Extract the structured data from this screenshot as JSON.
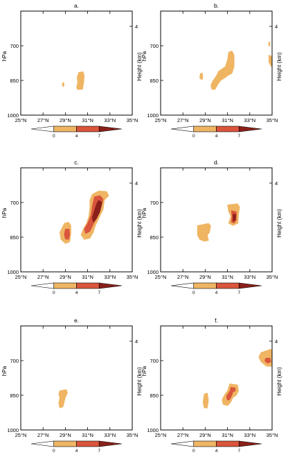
{
  "colors": {
    "level0": "#ffffff",
    "level1": "#efb563",
    "level2": "#d9553c",
    "level3": "#8b1f19"
  },
  "colorbar": {
    "labels": [
      "0",
      "4",
      "7"
    ]
  },
  "chart_data": [
    {
      "type": "contourf",
      "title": "a.",
      "xlabel": "",
      "ylabel": "hPa",
      "y2label": "Height (km)",
      "xlim": [
        25,
        35
      ],
      "ylim": [
        1000,
        550
      ],
      "xticks": [
        "25°N",
        "27°N",
        "29°N",
        "31°N",
        "33°N",
        "35°N"
      ],
      "yticks": [
        "700",
        "850",
        "1000"
      ],
      "y2ticks": [
        "4"
      ],
      "shapes": [
        {
          "level": 1,
          "points": [
            [
              30.2,
              815
            ],
            [
              30.6,
              812
            ],
            [
              30.7,
              830
            ],
            [
              30.65,
              860
            ],
            [
              30.55,
              888
            ],
            [
              30.1,
              890
            ],
            [
              30.0,
              880
            ],
            [
              30.1,
              860
            ],
            [
              30.05,
              835
            ]
          ]
        },
        {
          "level": 1,
          "points": [
            [
              28.75,
              860
            ],
            [
              28.85,
              858
            ],
            [
              28.9,
              872
            ],
            [
              28.8,
              878
            ],
            [
              28.72,
              870
            ]
          ]
        }
      ]
    },
    {
      "type": "contourf",
      "title": "b.",
      "xlabel": "",
      "ylabel": "hPa",
      "y2label": "Height (km)",
      "xlim": [
        25,
        35
      ],
      "ylim": [
        1000,
        550
      ],
      "xticks": [
        "25°N",
        "27°N",
        "29°N",
        "31°N",
        "33°N",
        "35°N"
      ],
      "yticks": [
        "700",
        "850",
        "1000"
      ],
      "y2ticks": [
        "4"
      ],
      "shapes": [
        {
          "level": 1,
          "points": [
            [
              31.1,
              728
            ],
            [
              31.4,
              722
            ],
            [
              31.6,
              740
            ],
            [
              31.6,
              790
            ],
            [
              31.4,
              820
            ],
            [
              31.0,
              830
            ],
            [
              30.8,
              838
            ],
            [
              30.4,
              850
            ],
            [
              30.1,
              870
            ],
            [
              29.9,
              888
            ],
            [
              29.6,
              890
            ],
            [
              29.5,
              870
            ],
            [
              29.7,
              850
            ],
            [
              30.0,
              830
            ],
            [
              30.2,
              810
            ],
            [
              30.5,
              800
            ],
            [
              30.8,
              790
            ],
            [
              31.0,
              760
            ]
          ]
        },
        {
          "level": 1,
          "points": [
            [
              28.55,
              820
            ],
            [
              28.75,
              818
            ],
            [
              28.8,
              838
            ],
            [
              28.7,
              848
            ],
            [
              28.5,
              840
            ]
          ]
        },
        {
          "level": 1,
          "points": [
            [
              34.7,
              740
            ],
            [
              34.95,
              745
            ],
            [
              35.0,
              780
            ],
            [
              34.9,
              790
            ],
            [
              34.7,
              770
            ]
          ]
        },
        {
          "level": 1,
          "points": [
            [
              34.7,
              685
            ],
            [
              34.8,
              682
            ],
            [
              34.82,
              700
            ],
            [
              34.7,
              702
            ]
          ]
        }
      ]
    },
    {
      "type": "contourf",
      "title": "c.",
      "xlabel": "",
      "ylabel": "hPa",
      "y2label": "Height (km)",
      "xlim": [
        25,
        35
      ],
      "ylim": [
        1000,
        550
      ],
      "xticks": [
        "25°N",
        "27°N",
        "29°N",
        "31°N",
        "33°N",
        "35°N"
      ],
      "yticks": [
        "700",
        "850",
        "1000"
      ],
      "y2ticks": [
        "4"
      ],
      "shapes": [
        {
          "level": 1,
          "points": [
            [
              31.4,
              665
            ],
            [
              32.0,
              650
            ],
            [
              32.7,
              652
            ],
            [
              32.9,
              670
            ],
            [
              32.5,
              690
            ],
            [
              32.4,
              730
            ],
            [
              32.0,
              770
            ],
            [
              31.7,
              800
            ],
            [
              31.5,
              830
            ],
            [
              31.2,
              855
            ],
            [
              30.7,
              860
            ],
            [
              30.4,
              840
            ],
            [
              30.6,
              815
            ],
            [
              30.9,
              790
            ],
            [
              31.1,
              760
            ],
            [
              31.2,
              720
            ],
            [
              31.2,
              690
            ]
          ]
        },
        {
          "level": 1,
          "points": [
            [
              28.9,
              790
            ],
            [
              29.3,
              785
            ],
            [
              29.5,
              800
            ],
            [
              29.5,
              835
            ],
            [
              29.4,
              870
            ],
            [
              29.0,
              878
            ],
            [
              28.6,
              860
            ],
            [
              28.5,
              830
            ],
            [
              28.7,
              810
            ]
          ]
        },
        {
          "level": 2,
          "points": [
            [
              31.6,
              675
            ],
            [
              32.1,
              670
            ],
            [
              32.4,
              685
            ],
            [
              32.2,
              720
            ],
            [
              31.9,
              760
            ],
            [
              31.5,
              795
            ],
            [
              31.2,
              825
            ],
            [
              30.8,
              835
            ],
            [
              30.7,
              815
            ],
            [
              31.0,
              790
            ],
            [
              31.3,
              755
            ],
            [
              31.4,
              720
            ]
          ]
        },
        {
          "level": 2,
          "points": [
            [
              29.0,
              815
            ],
            [
              29.35,
              815
            ],
            [
              29.4,
              840
            ],
            [
              29.3,
              860
            ],
            [
              29.0,
              858
            ],
            [
              28.9,
              838
            ]
          ]
        },
        {
          "level": 3,
          "points": [
            [
              32.0,
              690
            ],
            [
              32.3,
              700
            ],
            [
              32.1,
              740
            ],
            [
              31.8,
              770
            ],
            [
              31.5,
              785
            ],
            [
              31.4,
              765
            ],
            [
              31.6,
              735
            ],
            [
              31.8,
              705
            ]
          ]
        }
      ]
    },
    {
      "type": "contourf",
      "title": "d.",
      "xlabel": "",
      "ylabel": "hPa",
      "y2label": "Height (km)",
      "xlim": [
        25,
        35
      ],
      "ylim": [
        1000,
        550
      ],
      "xticks": [
        "25°N",
        "27°N",
        "29°N",
        "31°N",
        "33°N",
        "35°N"
      ],
      "yticks": [
        "700",
        "850",
        "1000"
      ],
      "y2ticks": [
        "4"
      ],
      "shapes": [
        {
          "level": 1,
          "points": [
            [
              31.0,
              710
            ],
            [
              31.9,
              705
            ],
            [
              32.1,
              720
            ],
            [
              32.0,
              750
            ],
            [
              31.95,
              790
            ],
            [
              31.5,
              800
            ],
            [
              31.1,
              790
            ],
            [
              31.3,
              760
            ],
            [
              31.1,
              740
            ]
          ]
        },
        {
          "level": 1,
          "points": [
            [
              28.3,
              800
            ],
            [
              29.3,
              790
            ],
            [
              29.5,
              800
            ],
            [
              29.4,
              830
            ],
            [
              29.2,
              840
            ],
            [
              29.3,
              865
            ],
            [
              28.9,
              868
            ],
            [
              28.5,
              860
            ],
            [
              28.3,
              840
            ]
          ]
        },
        {
          "level": 2,
          "points": [
            [
              31.35,
              735
            ],
            [
              31.8,
              740
            ],
            [
              31.8,
              775
            ],
            [
              31.6,
              790
            ],
            [
              31.35,
              785
            ],
            [
              31.4,
              760
            ]
          ]
        },
        {
          "level": 3,
          "points": [
            [
              31.5,
              750
            ],
            [
              31.75,
              752
            ],
            [
              31.7,
              778
            ],
            [
              31.5,
              780
            ]
          ]
        }
      ]
    },
    {
      "type": "contourf",
      "title": "e.",
      "xlabel": "",
      "ylabel": "hPa",
      "y2label": "Height (km)",
      "xlim": [
        25,
        35
      ],
      "ylim": [
        1000,
        550
      ],
      "xticks": [
        "25°N",
        "27°N",
        "29°N",
        "31°N",
        "33°N",
        "35°N"
      ],
      "yticks": [
        "700",
        "850",
        "1000"
      ],
      "y2ticks": [
        "4"
      ],
      "shapes": [
        {
          "level": 1,
          "points": [
            [
              28.5,
              830
            ],
            [
              29.1,
              825
            ],
            [
              29.2,
              840
            ],
            [
              29.0,
              860
            ],
            [
              28.9,
              880
            ],
            [
              28.8,
              900
            ],
            [
              28.5,
              905
            ],
            [
              28.4,
              885
            ],
            [
              28.5,
              860
            ],
            [
              28.4,
              845
            ]
          ]
        }
      ]
    },
    {
      "type": "contourf",
      "title": "f.",
      "xlabel": "",
      "ylabel": "hPa",
      "y2label": "Height (km)",
      "xlim": [
        25,
        35
      ],
      "ylim": [
        1000,
        550
      ],
      "xticks": [
        "25°N",
        "27°N",
        "29°N",
        "31°N",
        "33°N",
        "35°N"
      ],
      "yticks": [
        "700",
        "850",
        "1000"
      ],
      "y2ticks": [
        "4"
      ],
      "shapes": [
        {
          "level": 1,
          "points": [
            [
              34.0,
              665
            ],
            [
              34.9,
              650
            ],
            [
              35.0,
              660
            ],
            [
              35.0,
              725
            ],
            [
              34.5,
              725
            ],
            [
              34.0,
              705
            ],
            [
              33.8,
              685
            ]
          ]
        },
        {
          "level": 1,
          "points": [
            [
              31.2,
              800
            ],
            [
              31.9,
              805
            ],
            [
              32.0,
              830
            ],
            [
              31.8,
              850
            ],
            [
              31.5,
              860
            ],
            [
              31.3,
              880
            ],
            [
              31.0,
              895
            ],
            [
              30.6,
              890
            ],
            [
              30.5,
              870
            ],
            [
              30.7,
              850
            ],
            [
              31.0,
              830
            ]
          ]
        },
        {
          "level": 1,
          "points": [
            [
              28.9,
              845
            ],
            [
              29.2,
              840
            ],
            [
              29.3,
              870
            ],
            [
              29.2,
              905
            ],
            [
              28.9,
              905
            ],
            [
              28.8,
              880
            ]
          ]
        },
        {
          "level": 2,
          "points": [
            [
              34.4,
              690
            ],
            [
              34.8,
              688
            ],
            [
              34.9,
              705
            ],
            [
              34.6,
              712
            ],
            [
              34.35,
              702
            ]
          ]
        },
        {
          "level": 2,
          "points": [
            [
              31.3,
              815
            ],
            [
              31.7,
              818
            ],
            [
              31.7,
              832
            ],
            [
              31.5,
              835
            ],
            [
              31.4,
              850
            ],
            [
              31.2,
              868
            ],
            [
              31.0,
              872
            ],
            [
              30.9,
              855
            ],
            [
              31.1,
              840
            ],
            [
              31.25,
              828
            ]
          ]
        }
      ]
    }
  ]
}
